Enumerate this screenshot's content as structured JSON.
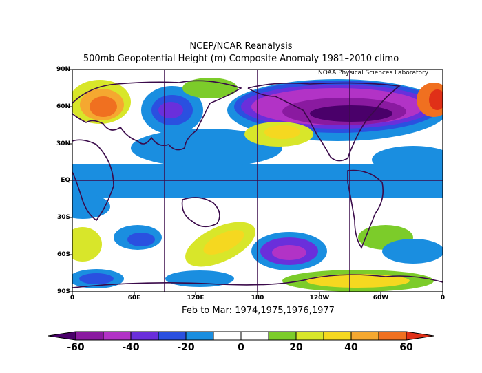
{
  "title": {
    "line1": "NCEP/NCAR Reanalysis",
    "line2": "500mb Geopotential Height (m) Composite Anomaly 1981–2010 climo"
  },
  "credit": "NOAA Physical Sciences Laboratory",
  "period": "Feb to Mar: 1974,1975,1976,1977",
  "lat_labels": [
    "90N",
    "60N",
    "30N",
    "EQ",
    "30S",
    "60S",
    "90S"
  ],
  "lon_labels": [
    "0",
    "60E",
    "120E",
    "180",
    "120W",
    "60W",
    "0"
  ],
  "colorbar": {
    "labels": [
      "-60",
      "-40",
      "-20",
      "0",
      "20",
      "40",
      "60"
    ],
    "colors": [
      "#4a006a",
      "#8a1aa0",
      "#b233c6",
      "#6a2fdb",
      "#2a50e0",
      "#1a8ee0",
      "#ffffff",
      "#ffffff",
      "#7ccc2a",
      "#d8e62a",
      "#f5d820",
      "#f5a830",
      "#f07020",
      "#e03018"
    ]
  }
}
